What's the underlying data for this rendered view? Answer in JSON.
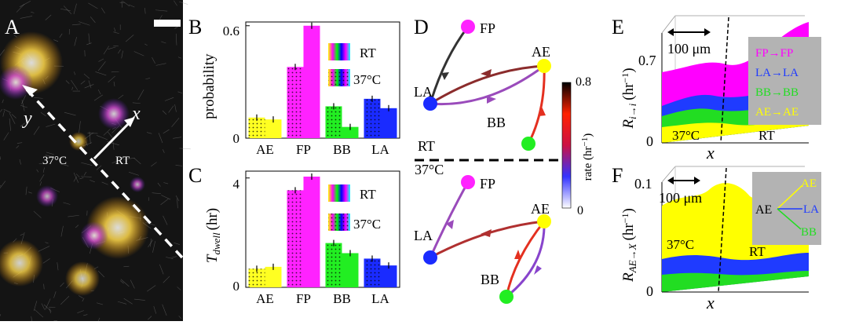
{
  "panels": {
    "A": {
      "letter": "A",
      "axis_y": "y",
      "axis_x": "x",
      "region_left": "37°C",
      "region_right": "RT"
    },
    "B": {
      "letter": "B",
      "legend": [
        "RT",
        "37°C"
      ],
      "chart_data": {
        "type": "bar",
        "ylabel": "probability",
        "categories": [
          "AE",
          "FP",
          "BB",
          "LA"
        ],
        "yticks": [
          "0",
          "0.6"
        ],
        "ylim": [
          0,
          0.62
        ],
        "series": [
          {
            "name": "RT",
            "values": [
              0.11,
              0.38,
              0.17,
              0.21
            ]
          },
          {
            "name": "37°C",
            "values": [
              0.1,
              0.6,
              0.06,
              0.16
            ]
          }
        ]
      }
    },
    "C": {
      "letter": "C",
      "legend": [
        "RT",
        "37°C"
      ],
      "chart_data": {
        "type": "bar",
        "ylabel_main": "T",
        "ylabel_sub": "dwell",
        "ylabel_unit": "(hr)",
        "categories": [
          "AE",
          "FP",
          "BB",
          "LA"
        ],
        "yticks": [
          "0",
          "4"
        ],
        "ylim": [
          0,
          4.25
        ],
        "series": [
          {
            "name": "RT",
            "values": [
              0.68,
              3.55,
              1.62,
              1.05
            ]
          },
          {
            "name": "37°C",
            "values": [
              0.75,
              4.05,
              1.25,
              0.8
            ]
          }
        ]
      }
    },
    "D": {
      "letter": "D",
      "nodes": [
        "FP",
        "AE",
        "LA",
        "BB"
      ],
      "region_top": "RT",
      "region_bottom": "37°C",
      "colorbar": {
        "label": "rate (hr",
        "sup": "−1",
        "close": ")",
        "max": "0.8",
        "min": "0"
      }
    },
    "E": {
      "letter": "E",
      "scale_bar": "100 μm",
      "ylabel": "R",
      "ylabel_sub": "i→i",
      "ylabel_unit": "(hr",
      "ylabel_sup": "−1",
      "ylabel_close": ")",
      "xlabel": "x",
      "ytick_top": "0.7",
      "ytick_bottom": "0",
      "region_left": "37°C",
      "region_right": "RT",
      "legend": [
        {
          "label": "FP→FP",
          "color": "#ff00ff"
        },
        {
          "label": "LA→LA",
          "color": "#1f3bff"
        },
        {
          "label": "BB→BB",
          "color": "#22dd22"
        },
        {
          "label": "AE→AE",
          "color": "#ffff00"
        }
      ]
    },
    "F": {
      "letter": "F",
      "scale_bar": "100 μm",
      "ylabel": "R",
      "ylabel_sub": "AE→X",
      "ylabel_unit": "(hr",
      "ylabel_sup": "−1",
      "ylabel_close": ")",
      "xlabel": "x",
      "ytick_top": "0.1",
      "ytick_bottom": "0",
      "region_left": "37°C",
      "region_right": "RT",
      "legend_source": "AE",
      "legend": [
        {
          "label": "AE",
          "color": "#ffff00"
        },
        {
          "label": "LA",
          "color": "#1f3bff"
        },
        {
          "label": "BB",
          "color": "#22dd22"
        }
      ]
    }
  }
}
